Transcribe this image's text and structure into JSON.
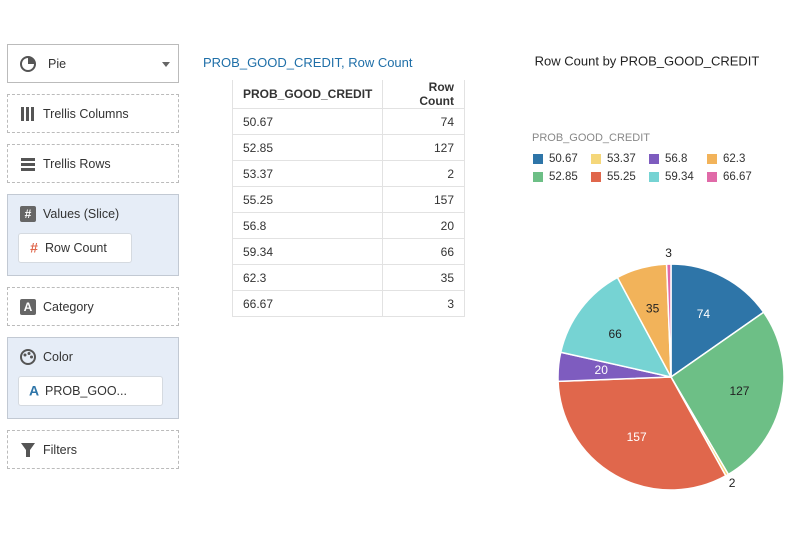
{
  "sidebar": {
    "chart_type": "Pie",
    "trellis_columns": "Trellis Columns",
    "trellis_rows": "Trellis Rows",
    "values_label": "Values (Slice)",
    "values_item": "Row Count",
    "category": "Category",
    "color_label": "Color",
    "color_item": "PROB_GOO...",
    "filters": "Filters"
  },
  "table": {
    "title": "PROB_GOOD_CREDIT, Row Count",
    "columns": [
      "PROB_GOOD_CREDIT",
      "Row Count"
    ],
    "rows": [
      [
        "50.67",
        74
      ],
      [
        "52.85",
        127
      ],
      [
        "53.37",
        2
      ],
      [
        "55.25",
        157
      ],
      [
        "56.8",
        20
      ],
      [
        "59.34",
        66
      ],
      [
        "62.3",
        35
      ],
      [
        "66.67",
        3
      ]
    ]
  },
  "chart_data": {
    "type": "pie",
    "title": "Row Count by PROB_GOOD_CREDIT",
    "legend_title": "PROB_GOOD_CREDIT",
    "categories": [
      "50.67",
      "52.85",
      "53.37",
      "55.25",
      "56.8",
      "59.34",
      "62.3",
      "66.67"
    ],
    "values": [
      74,
      127,
      2,
      157,
      20,
      66,
      35,
      3
    ],
    "colors": [
      "#2e75a8",
      "#6dbf86",
      "#f5d77a",
      "#e0674c",
      "#7e5cbf",
      "#76d3d3",
      "#f2b35a",
      "#e06aa8"
    ]
  }
}
